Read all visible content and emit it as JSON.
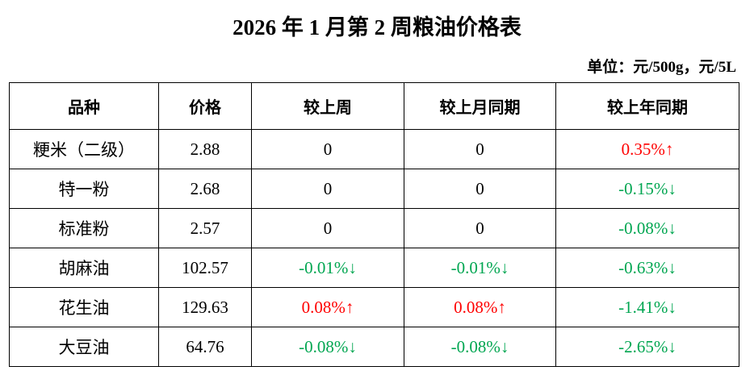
{
  "header": {
    "title": "2026 年 1 月第 2 周粮油价格表",
    "unit": "单位：元/500g，元/5L"
  },
  "colors": {
    "up": "#ff0000",
    "down": "#00a651"
  },
  "table": {
    "columns": [
      "品种",
      "价格",
      "较上周",
      "较上月同期",
      "较上年同期"
    ],
    "rows": [
      [
        "粳米（二级）",
        "2.88",
        "0",
        "0",
        "0.35%↑"
      ],
      [
        "特一粉",
        "2.68",
        "0",
        "0",
        "-0.15%↓"
      ],
      [
        "标准粉",
        "2.57",
        "0",
        "0",
        "-0.08%↓"
      ],
      [
        "胡麻油",
        "102.57",
        "-0.01%↓",
        "-0.01%↓",
        "-0.63%↓"
      ],
      [
        "花生油",
        "129.63",
        "0.08%↑",
        "0.08%↑",
        "-1.41%↓"
      ],
      [
        "大豆油",
        "64.76",
        "-0.08%↓",
        "-0.08%↓",
        "-2.65%↓"
      ]
    ]
  }
}
